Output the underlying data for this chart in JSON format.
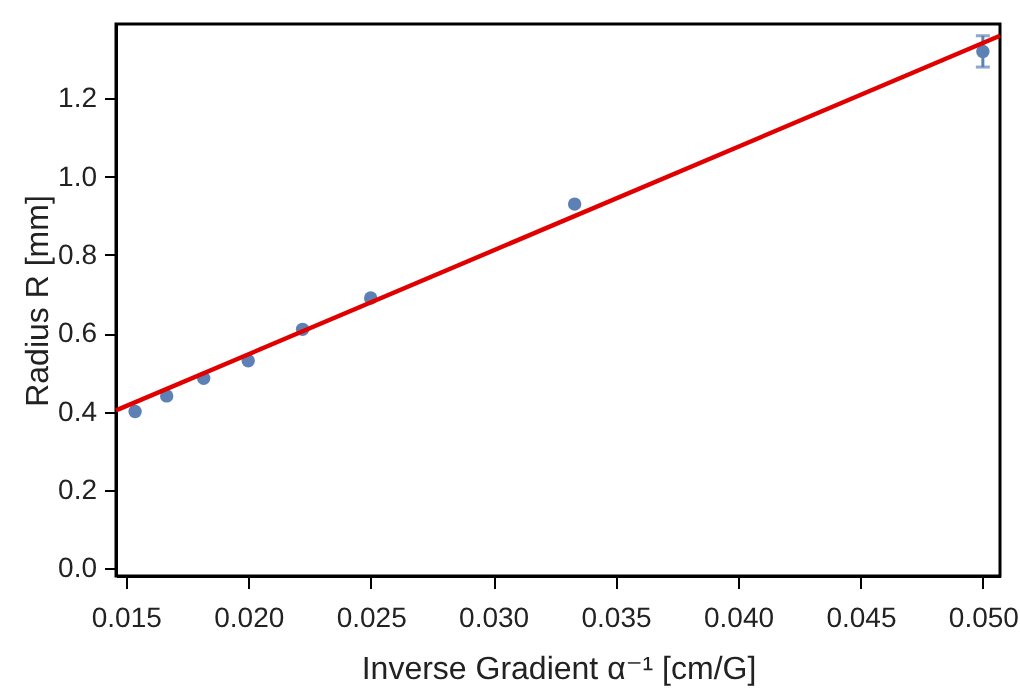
{
  "chart_data": {
    "type": "scatter",
    "xlabel": "Inverse Gradient α⁻¹ [cm/G]",
    "ylabel": "Radius R [mm]",
    "grid": false,
    "xlim": [
      0.0146,
      0.0507
    ],
    "ylim": [
      -0.02,
      1.39
    ],
    "xticks": [
      {
        "value": 0.015,
        "label": "0.015"
      },
      {
        "value": 0.02,
        "label": "0.020"
      },
      {
        "value": 0.025,
        "label": "0.025"
      },
      {
        "value": 0.03,
        "label": "0.030"
      },
      {
        "value": 0.035,
        "label": "0.035"
      },
      {
        "value": 0.04,
        "label": "0.040"
      },
      {
        "value": 0.045,
        "label": "0.045"
      },
      {
        "value": 0.05,
        "label": "0.050"
      }
    ],
    "yticks": [
      {
        "value": 0,
        "label": "0.0"
      },
      {
        "value": 0.2,
        "label": "0.2"
      },
      {
        "value": 0.4,
        "label": "0.4"
      },
      {
        "value": 0.6,
        "label": "0.6"
      },
      {
        "value": 0.8,
        "label": "0.8"
      },
      {
        "value": 1,
        "label": "1.0"
      },
      {
        "value": 1.2,
        "label": "1.2"
      }
    ],
    "series": [
      {
        "color": "#5e81b5",
        "marker": "circle",
        "x": [
          0.01538,
          0.01667,
          0.01818,
          0.02,
          0.02222,
          0.025,
          0.03333,
          0.05
        ],
        "values": [
          0.4,
          0.44,
          0.485,
          0.53,
          0.61,
          0.69,
          0.93,
          1.32
        ],
        "errors": [
          null,
          null,
          null,
          null,
          null,
          null,
          null,
          0.04
        ]
      },
      {
        "type": "line",
        "marker": "none",
        "color": "#e00000",
        "x": [
          0.0146,
          0.0507
        ],
        "values": [
          0.403,
          1.36
        ]
      }
    ]
  }
}
